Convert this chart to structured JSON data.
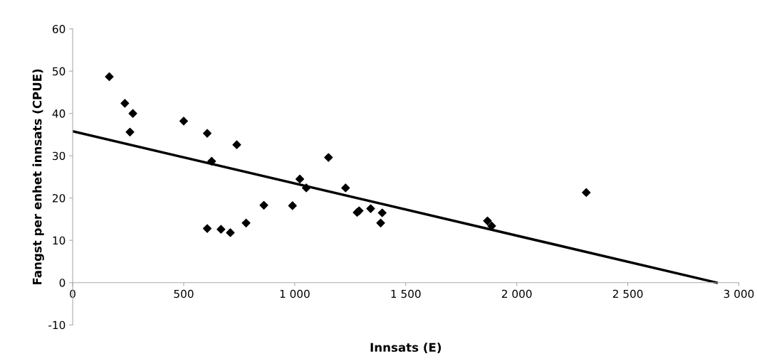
{
  "chart_data": {
    "type": "scatter",
    "xlabel": "Innsats (E)",
    "ylabel": "Fangst per enhet innsats (CPUE)",
    "xlim": [
      0,
      3000
    ],
    "xticks": [
      {
        "value": 0,
        "label": "0"
      },
      {
        "value": 500,
        "label": "500"
      },
      {
        "value": 1000,
        "label": "1 000"
      },
      {
        "value": 1500,
        "label": "1 500"
      },
      {
        "value": 2000,
        "label": "2 000"
      },
      {
        "value": 2500,
        "label": "2 500"
      },
      {
        "value": 3000,
        "label": "3 000"
      }
    ],
    "ylim": [
      -10,
      60
    ],
    "yticks": [
      -10,
      0,
      10,
      20,
      30,
      40,
      50,
      60
    ],
    "grid": false,
    "legend": false,
    "series": [
      {
        "color": "#000000",
        "marker": "diamond",
        "x": [
          165,
          235,
          271,
          258,
          500,
          606,
          626,
          739,
          606,
          668,
          710,
          781,
          861,
          990,
          1023,
          1052,
          1152,
          1229,
          1281,
          1290,
          1342,
          1394,
          1387,
          1868,
          1887,
          2313
        ],
        "values": [
          48.7,
          42.4,
          40.0,
          35.6,
          38.2,
          35.3,
          28.7,
          32.6,
          12.8,
          12.6,
          11.8,
          14.1,
          18.3,
          18.2,
          24.5,
          22.4,
          29.6,
          22.4,
          16.6,
          17.0,
          17.5,
          16.5,
          14.1,
          14.6,
          13.4,
          21.3
        ]
      },
      {
        "type": "line",
        "color": "#000000",
        "marker": "none",
        "line_style": "solid",
        "x": [
          0,
          2900
        ],
        "values": [
          35.8,
          0
        ]
      }
    ]
  }
}
